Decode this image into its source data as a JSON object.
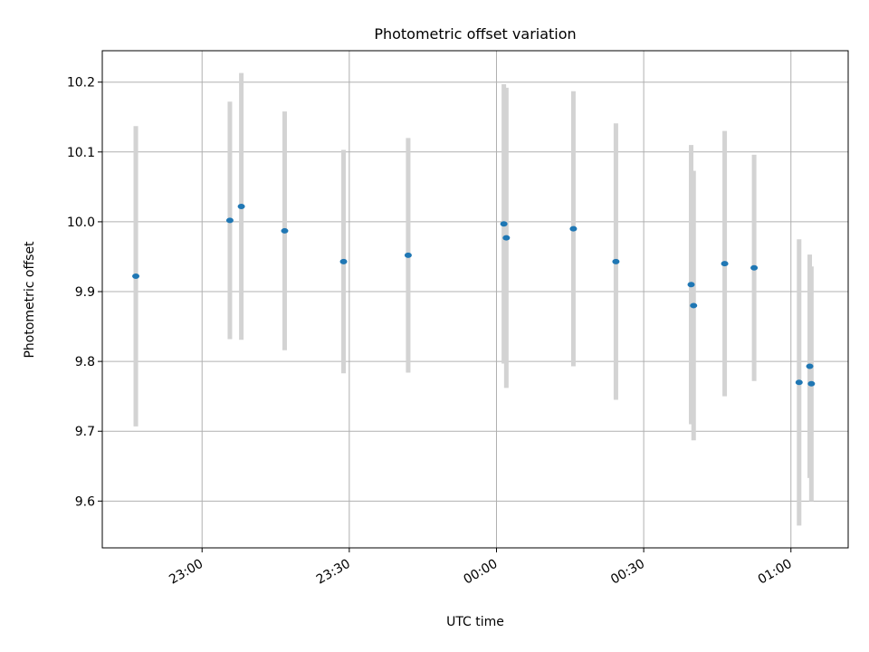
{
  "chart_data": {
    "type": "scatter",
    "title": "Photometric offset variation",
    "xlabel": "UTC time",
    "ylabel": "Photometric offset",
    "x_axis_type": "time",
    "xlim": [
      "22:39:40",
      "01:11:40"
    ],
    "ylim": [
      9.533,
      10.245
    ],
    "x_ticks": [
      "23:00",
      "23:30",
      "00:00",
      "00:30",
      "01:00"
    ],
    "y_ticks": [
      9.6,
      9.7,
      9.8,
      9.9,
      10.0,
      10.1,
      10.2
    ],
    "y_tick_labels": [
      "9.6",
      "9.7",
      "9.8",
      "9.9",
      "10.0",
      "10.1",
      "10.2"
    ],
    "grid": true,
    "colors": {
      "marker": "#1f77b4",
      "errorbar": "#d3d3d3",
      "grid": "#b0b0b0"
    },
    "points": [
      {
        "time": "22:46:30",
        "y": 9.922,
        "err": 0.215
      },
      {
        "time": "23:05:40",
        "y": 10.002,
        "err": 0.17
      },
      {
        "time": "23:08:00",
        "y": 10.022,
        "err": 0.191
      },
      {
        "time": "23:16:50",
        "y": 9.987,
        "err": 0.171
      },
      {
        "time": "23:28:50",
        "y": 9.943,
        "err": 0.16
      },
      {
        "time": "23:42:00",
        "y": 9.952,
        "err": 0.168
      },
      {
        "time": "00:01:30",
        "y": 9.997,
        "err": 0.2
      },
      {
        "time": "00:02:00",
        "y": 9.977,
        "err": 0.215
      },
      {
        "time": "00:15:40",
        "y": 9.99,
        "err": 0.197
      },
      {
        "time": "00:24:20",
        "y": 9.943,
        "err": 0.198
      },
      {
        "time": "00:39:40",
        "y": 9.91,
        "err": 0.2
      },
      {
        "time": "00:40:10",
        "y": 9.88,
        "err": 0.193
      },
      {
        "time": "00:46:30",
        "y": 9.94,
        "err": 0.19
      },
      {
        "time": "00:52:30",
        "y": 9.934,
        "err": 0.162
      },
      {
        "time": "01:01:40",
        "y": 9.77,
        "err": 0.205
      },
      {
        "time": "01:03:50",
        "y": 9.793,
        "err": 0.16
      },
      {
        "time": "01:04:10",
        "y": 9.768,
        "err": 0.168
      }
    ]
  }
}
